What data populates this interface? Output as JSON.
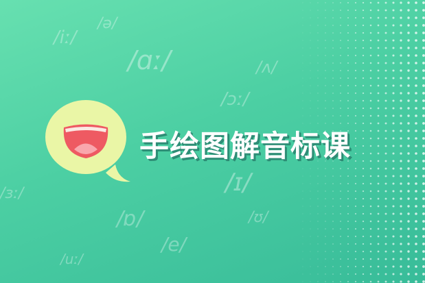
{
  "title": "手绘图解音标课",
  "phonetic_symbols": [
    "/iː/",
    "/ə/",
    "/ɑː/",
    "/ʌ/",
    "/ɔː/",
    "/ɜː/",
    "/ɪ/",
    "/ɒ/",
    "/ʊ/",
    "/e/",
    "/uː/"
  ],
  "colors": {
    "background_top": "#67e0b0",
    "background_bottom": "#38bc99",
    "bubble": "#eaf6a6",
    "mouth": "#ee5a62",
    "title": "#ffffff",
    "title_shadow": "#2f8f78"
  },
  "icons": {
    "logo": "speech-bubble-mouth-icon"
  }
}
